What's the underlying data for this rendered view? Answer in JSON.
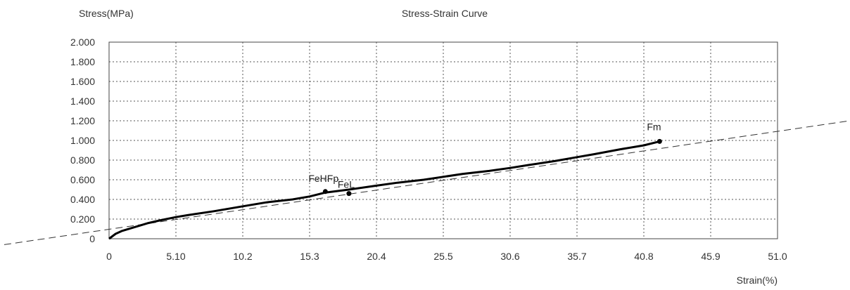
{
  "chart_data": {
    "type": "line",
    "title": "Stress-Strain Curve",
    "xlabel": "Strain(%)",
    "ylabel": "Stress(MPa)",
    "xlim": [
      0,
      51.0
    ],
    "ylim": [
      0,
      2.0
    ],
    "x_ticks": [
      "0",
      "5.10",
      "10.2",
      "15.3",
      "20.4",
      "25.5",
      "30.6",
      "35.7",
      "40.8",
      "45.9",
      "51.0"
    ],
    "x_tick_values": [
      0,
      5.1,
      10.2,
      15.3,
      20.4,
      25.5,
      30.6,
      35.7,
      40.8,
      45.9,
      51.0
    ],
    "y_ticks": [
      "0",
      "0.200",
      "0.400",
      "0.600",
      "0.800",
      "1.000",
      "1.200",
      "1.400",
      "1.600",
      "1.800",
      "2.000"
    ],
    "y_tick_values": [
      0,
      0.2,
      0.4,
      0.6,
      0.8,
      1.0,
      1.2,
      1.4,
      1.6,
      1.8,
      2.0
    ],
    "grid": true,
    "grid_style": "dotted",
    "curve_color": "#000000",
    "trend_line_color": "#333333",
    "series": [
      {
        "x": [
          0,
          0.5,
          1.0,
          2.0,
          3.0,
          4.0,
          5.1,
          6.0,
          8.0,
          10.2,
          12.0,
          14.0,
          15.3,
          16.5,
          18.3,
          20.4,
          22.0,
          24.0,
          25.5,
          27.0,
          29.0,
          30.6,
          32.0,
          34.0,
          35.7,
          37.0,
          39.0,
          40.8,
          42.0
        ],
        "y": [
          0,
          0.05,
          0.08,
          0.12,
          0.16,
          0.19,
          0.22,
          0.24,
          0.28,
          0.33,
          0.37,
          0.4,
          0.43,
          0.47,
          0.5,
          0.54,
          0.57,
          0.6,
          0.63,
          0.66,
          0.69,
          0.72,
          0.75,
          0.79,
          0.83,
          0.86,
          0.91,
          0.95,
          0.99
        ]
      }
    ],
    "trend_line": {
      "x": [
        -8.0,
        56.5
      ],
      "y": [
        -0.06,
        1.2
      ]
    },
    "annotations": [
      {
        "text": "FeHFp",
        "x": 16.5,
        "y": 0.48
      },
      {
        "text": "FeL",
        "x": 18.3,
        "y": 0.46
      },
      {
        "text": "Fm",
        "x": 42.0,
        "y": 0.99
      }
    ]
  }
}
